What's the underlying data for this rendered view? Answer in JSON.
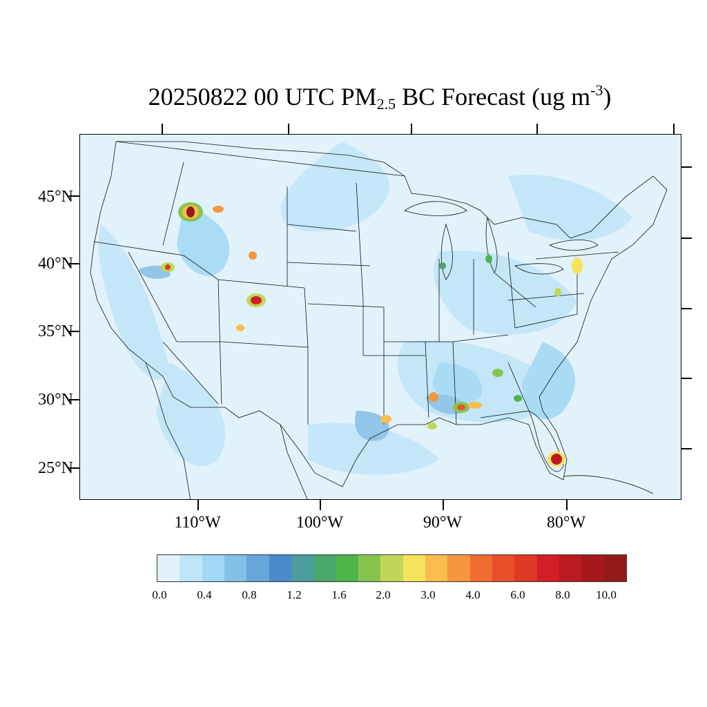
{
  "title": {
    "prefix": "20250822 00 UTC PM",
    "sub": "2.5",
    "middle": " BC Forecast (ug m",
    "sup": "-3",
    "suffix": ")"
  },
  "map": {
    "lat_labels": [
      "45°N",
      "40°N",
      "35°N",
      "30°N",
      "25°N"
    ],
    "lon_labels": [
      "110°W",
      "100°W",
      "90°W",
      "80°W"
    ],
    "background_color": "#e1f2fb",
    "hotspots": [
      {
        "region": "Idaho/Montana",
        "level": 10.0
      },
      {
        "region": "Colorado",
        "level": 8.0
      },
      {
        "region": "South Florida",
        "level": 10.0
      },
      {
        "region": "Utah",
        "level": 4.0
      },
      {
        "region": "Mississippi/Alabama",
        "level": 6.0
      },
      {
        "region": "Louisiana",
        "level": 4.0
      },
      {
        "region": "Texas coast",
        "level": 3.0
      },
      {
        "region": "Philadelphia/New Jersey",
        "level": 3.0
      }
    ]
  },
  "colorbar": {
    "labels": [
      "0.0",
      "0.4",
      "0.8",
      "1.2",
      "1.6",
      "2.0",
      "3.0",
      "4.0",
      "6.0",
      "8.0",
      "10.0"
    ],
    "colors": [
      "#e1f2fb",
      "#bee5f8",
      "#a0d8f5",
      "#84bfe5",
      "#66a6d8",
      "#4a8acb",
      "#4a9d9c",
      "#4aa66b",
      "#4fb54a",
      "#86c54d",
      "#c1d659",
      "#f6e35b",
      "#f8bd4d",
      "#f6963d",
      "#f06c2f",
      "#e84f2a",
      "#df3826",
      "#d21e27",
      "#bb1a21",
      "#a7181c",
      "#931a1a"
    ]
  }
}
